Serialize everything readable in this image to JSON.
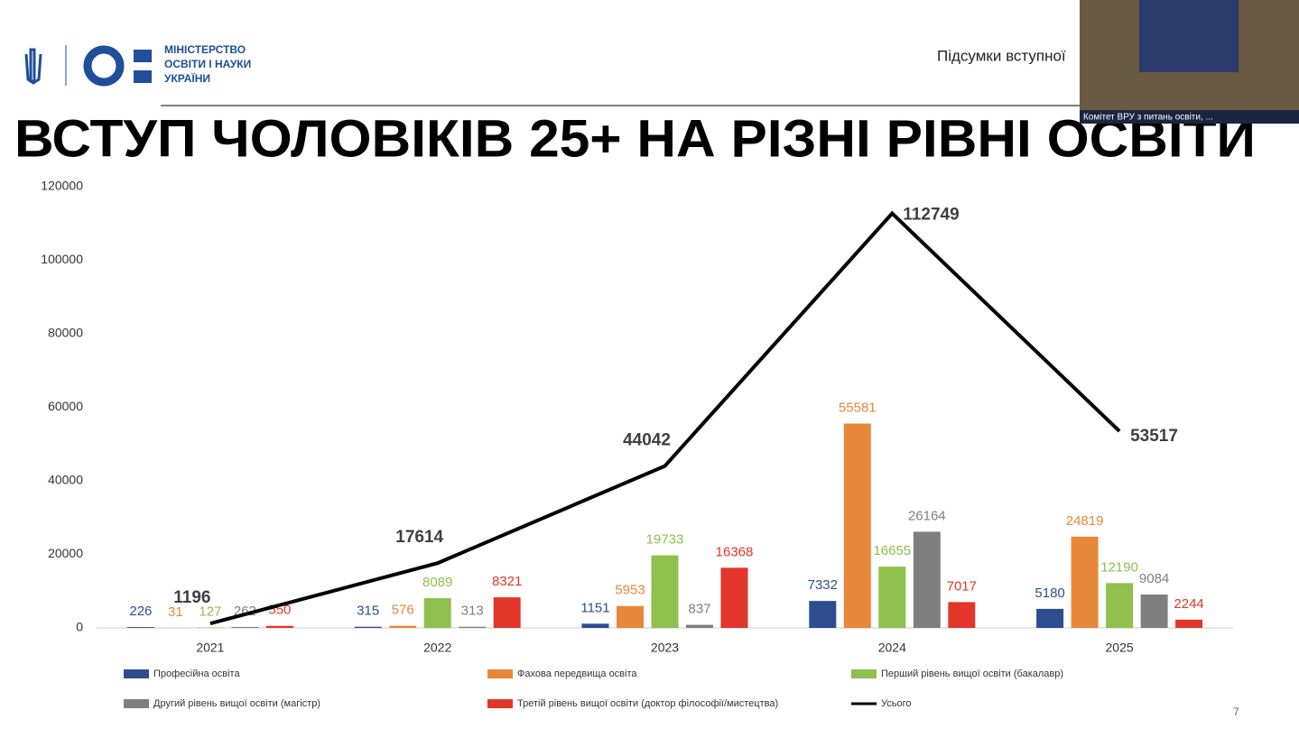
{
  "header": {
    "ministry": [
      "МІНІСТЕРСТВО",
      "ОСВІТИ І НАУКИ",
      "УКРАЇНИ"
    ],
    "subtitle": "Підсумки вступної",
    "video_caption": "Комітет ВРУ з питань освіти, ...",
    "page_number": "7"
  },
  "chart_data": {
    "type": "bar",
    "title": "ВСТУП ЧОЛОВІКІВ 25+ НА РІЗНІ РІВНІ ОСВІТИ",
    "categories": [
      "2021",
      "2022",
      "2023",
      "2024",
      "2025"
    ],
    "series": [
      {
        "name": "Професійна освіта",
        "color": "#2e4d8f",
        "values": [
          226,
          315,
          1151,
          7332,
          5180
        ]
      },
      {
        "name": "Фахова передвища освіта",
        "color": "#e8873a",
        "values": [
          31,
          576,
          5953,
          55581,
          24819
        ]
      },
      {
        "name": "Перший рівень вищої освіти (бакалавр)",
        "color": "#8fbf4d",
        "values": [
          127,
          8089,
          19733,
          16655,
          12190
        ]
      },
      {
        "name": "Другий рівень вищої освіти (магістр)",
        "color": "#7f7f7f",
        "values": [
          262,
          313,
          837,
          26164,
          9084
        ]
      },
      {
        "name": "Третій рівень вищої освіти (доктор філософії/мистецтва)",
        "color": "#e3362a",
        "values": [
          550,
          8321,
          16368,
          7017,
          2244
        ]
      },
      {
        "name": "Усього",
        "type": "line",
        "color": "#000000",
        "values": [
          1196,
          17614,
          44042,
          112749,
          53517
        ]
      }
    ],
    "ylim": [
      0,
      120000
    ],
    "yticks": [
      0,
      20000,
      40000,
      60000,
      80000,
      100000,
      120000
    ],
    "grid": false
  }
}
